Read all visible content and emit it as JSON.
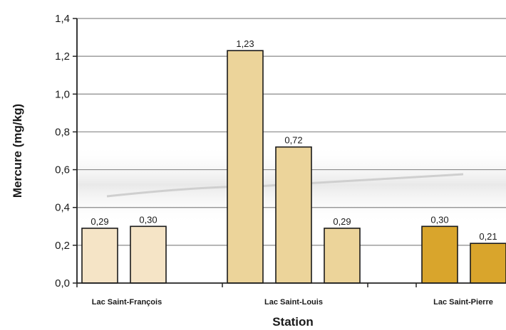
{
  "chart_data": {
    "type": "bar",
    "xlabel": "Station",
    "ylabel": "Mercure (mg/kg)",
    "ylim": [
      0,
      1.4
    ],
    "yticks": [
      "0,0",
      "0,2",
      "0,4",
      "0,6",
      "0,8",
      "1,0",
      "1,2",
      "1,4"
    ],
    "grid": true,
    "groups": [
      {
        "name": "Lac Saint-François",
        "color": "#f5e4c6",
        "bars": [
          {
            "value": 0.29,
            "label": "0,29"
          },
          {
            "value": 0.3,
            "label": "0,30"
          }
        ]
      },
      {
        "name": "Lac Saint-Louis",
        "color": "#ecd49a",
        "bars": [
          {
            "value": 1.23,
            "label": "1,23"
          },
          {
            "value": 0.72,
            "label": "0,72"
          },
          {
            "value": 0.29,
            "label": "0,29"
          }
        ]
      },
      {
        "name": "Lac Saint-Pierre",
        "color": "#d9a52c",
        "bars": [
          {
            "value": 0.3,
            "label": "0,30"
          },
          {
            "value": 0.21,
            "label": "0,21"
          }
        ]
      }
    ]
  }
}
